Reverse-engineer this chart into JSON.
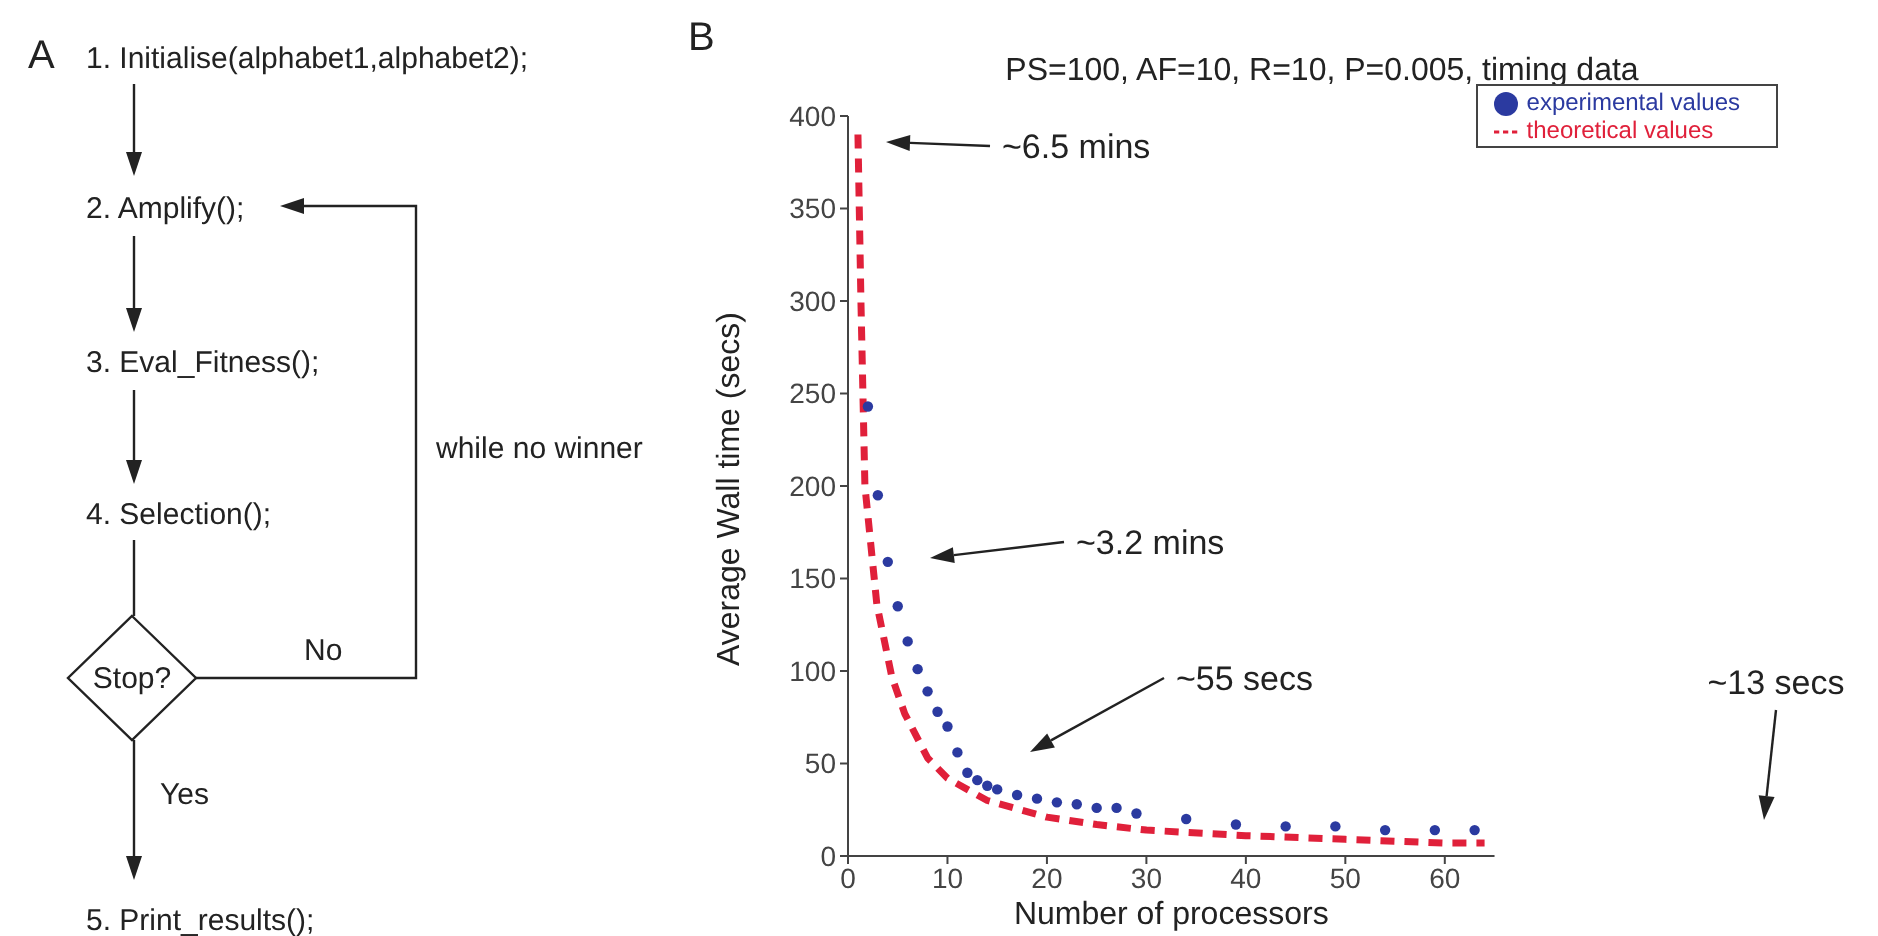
{
  "chart_data": [
    {
      "type": "other",
      "annotations": [
        "A",
        "1. Initialise(alphabet1,alphabet2);",
        "2. Amplify();",
        "3. Eval_Fitness();",
        "4. Selection();",
        "Stop?",
        "No",
        "while no winner",
        "Yes",
        "5. Print_results();"
      ]
    },
    {
      "type": "scatter",
      "title": "PS=100, AF=10, R=10, P=0.005, timing data",
      "xlabel": "Number of processors",
      "ylabel": "Average Wall time (secs)",
      "xlim": [
        0,
        65
      ],
      "xticks": [
        0,
        10,
        20,
        30,
        40,
        50,
        60
      ],
      "ylim": [
        0,
        400
      ],
      "yticks": [
        0,
        50,
        100,
        150,
        200,
        250,
        300,
        350,
        400
      ],
      "legend": "top right",
      "series": [
        {
          "name": "experimental values",
          "type": "scatter",
          "color": "#2b3aa0",
          "marker": "circle",
          "x": [
            2,
            3,
            4,
            5,
            6,
            7,
            8,
            9,
            10,
            11,
            12,
            13,
            14,
            15,
            17,
            19,
            21,
            23,
            25,
            27,
            29,
            34,
            39,
            44,
            49,
            54,
            59,
            63
          ],
          "values": [
            243,
            195,
            159,
            135,
            116,
            101,
            89,
            78,
            70,
            56,
            45,
            41,
            38,
            36,
            33,
            31,
            29,
            28,
            26,
            26,
            23,
            20,
            17,
            16,
            16,
            14,
            14,
            14
          ]
        },
        {
          "name": "theoretical values",
          "type": "line",
          "color": "#e0203a",
          "marker": "none",
          "line_style": "dashed",
          "x": [
            1,
            1.3,
            1.7,
            2.9,
            4.4,
            5.7,
            8,
            10,
            14,
            20,
            25,
            30,
            40,
            50,
            60,
            64
          ],
          "values": [
            390,
            300,
            200,
            136,
            97,
            77,
            53,
            42,
            30,
            21,
            17,
            14,
            11,
            9,
            7,
            7
          ]
        }
      ],
      "annotations": [
        "B",
        "~6.5 mins",
        "~3.2 mins",
        "~55 secs",
        "~13 secs"
      ]
    }
  ]
}
